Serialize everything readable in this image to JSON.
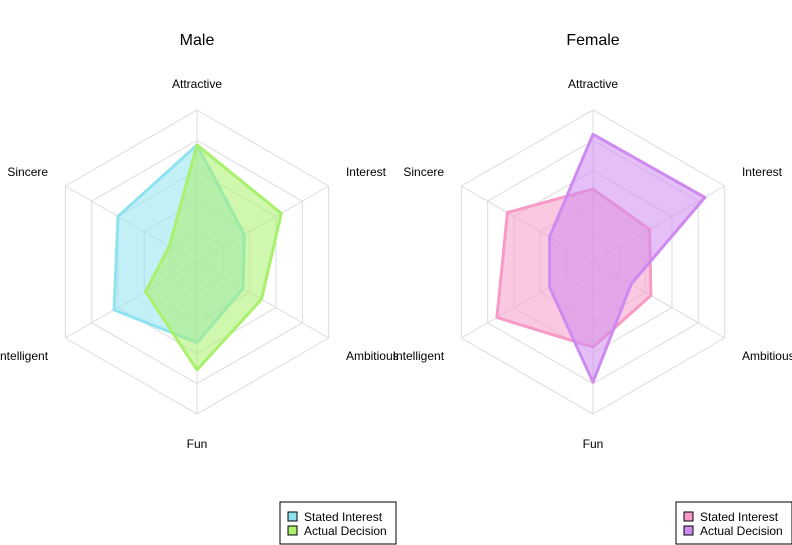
{
  "chart_data": [
    {
      "type": "radar",
      "title": "Male",
      "axes": [
        "Attractive",
        "Interest",
        "Ambitious",
        "Fun",
        "Intelligent",
        "Sincere"
      ],
      "rmax": 1.0,
      "grid_levels": [
        0.2,
        0.4,
        0.6,
        0.8,
        1.0
      ],
      "series": [
        {
          "name": "Stated Interest",
          "color": "#8fe3ef",
          "values": [
            0.77,
            0.36,
            0.35,
            0.53,
            0.63,
            0.6
          ]
        },
        {
          "name": "Actual Decision",
          "color": "#a9f06c",
          "values": [
            0.77,
            0.64,
            0.49,
            0.71,
            0.39,
            0.21
          ]
        }
      ],
      "legend": "bottom-right"
    },
    {
      "type": "radar",
      "title": "Female",
      "axes": [
        "Attractive",
        "Interest",
        "Ambitious",
        "Fun",
        "Intelligent",
        "Sincere"
      ],
      "rmax": 1.0,
      "grid_levels": [
        0.2,
        0.4,
        0.6,
        0.8,
        1.0
      ],
      "series": [
        {
          "name": "Stated Interest",
          "color": "#f79ac8",
          "values": [
            0.48,
            0.43,
            0.44,
            0.56,
            0.73,
            0.65
          ]
        },
        {
          "name": "Actual Decision",
          "color": "#cf8af0",
          "values": [
            0.84,
            0.85,
            0.29,
            0.79,
            0.33,
            0.33
          ]
        }
      ],
      "legend": "bottom-right"
    }
  ]
}
